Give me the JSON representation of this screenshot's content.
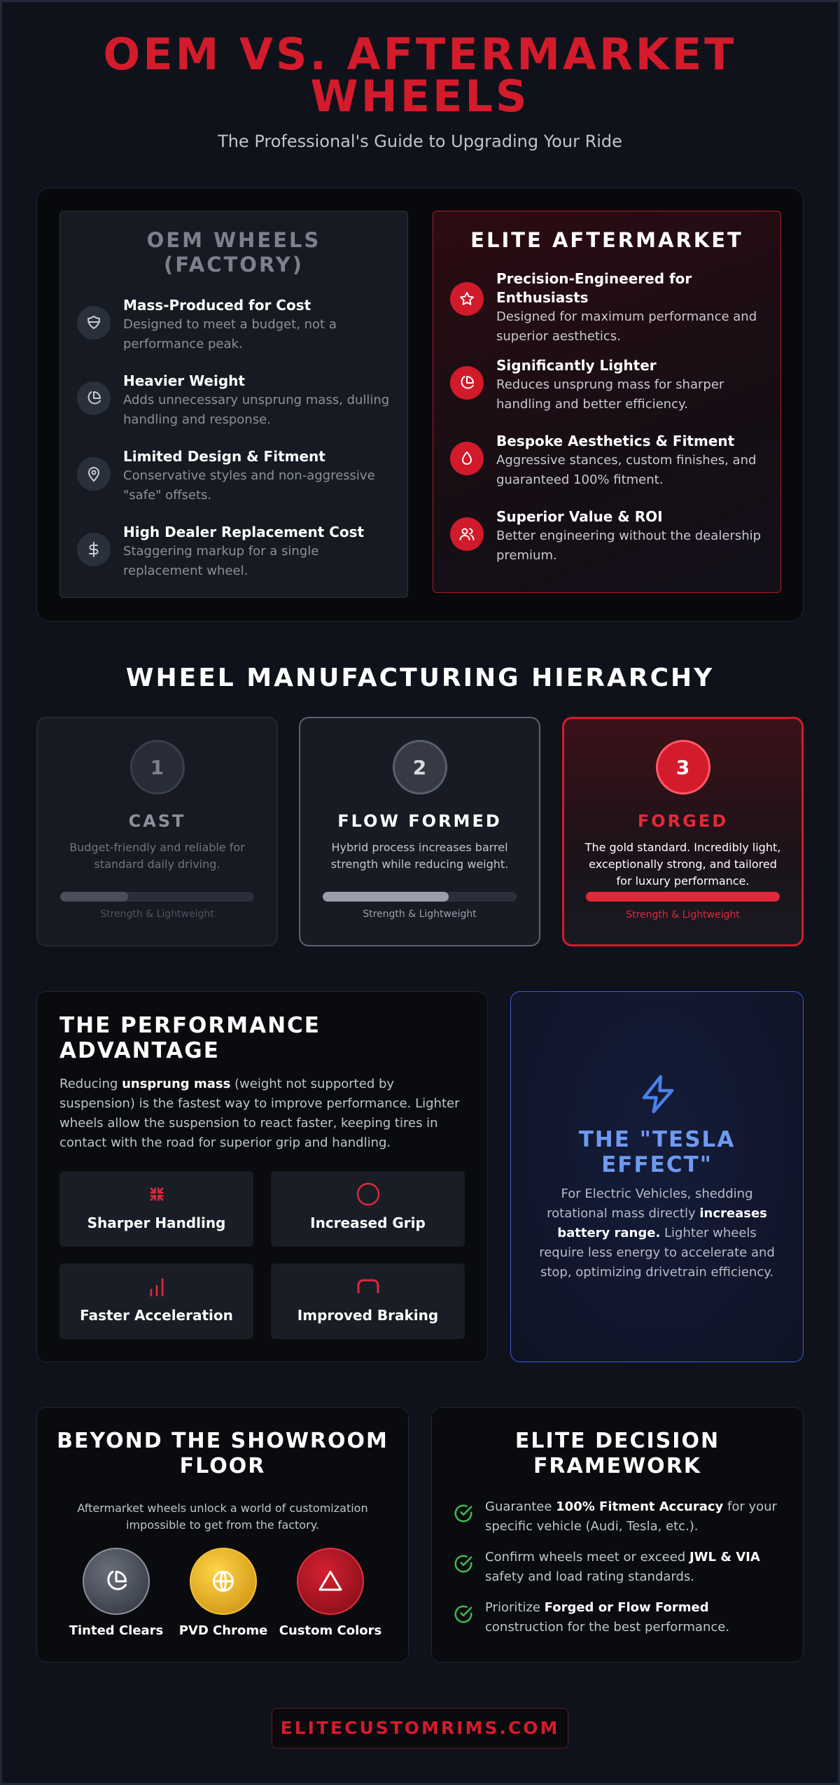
{
  "header": {
    "title_line1": "OEM VS. AFTERMARKET",
    "title_line2": "WHEELS",
    "subtitle": "The Professional's Guide to Upgrading Your Ride"
  },
  "comparison": {
    "oem": {
      "heading": "OEM WHEELS (FACTORY)",
      "features": [
        {
          "icon": "shield-icon",
          "title": "Mass-Produced for Cost",
          "desc": "Designed to meet a budget, not a performance peak."
        },
        {
          "icon": "pie-chart-icon",
          "title": "Heavier Weight",
          "desc": "Adds unnecessary unsprung mass, dulling handling and response."
        },
        {
          "icon": "map-pin-icon",
          "title": "Limited Design & Fitment",
          "desc": "Conservative styles and non-aggressive \"safe\" offsets."
        },
        {
          "icon": "dollar-icon",
          "title": "High Dealer Replacement Cost",
          "desc": "Staggering markup for a single replacement wheel."
        }
      ]
    },
    "elite": {
      "heading": "ELITE AFTERMARKET",
      "features": [
        {
          "icon": "star-icon",
          "title": "Precision-Engineered for Enthusiasts",
          "desc": "Designed for maximum performance and superior aesthetics."
        },
        {
          "icon": "pie-chart-icon",
          "title": "Significantly Lighter",
          "desc": "Reduces unsprung mass for sharper handling and better efficiency."
        },
        {
          "icon": "droplet-icon",
          "title": "Bespoke Aesthetics & Fitment",
          "desc": "Aggressive stances, custom finishes, and guaranteed 100% fitment."
        },
        {
          "icon": "users-icon",
          "title": "Superior Value & ROI",
          "desc": "Better engineering without the dealership premium."
        }
      ]
    }
  },
  "hierarchy": {
    "heading": "WHEEL MANUFACTURING HIERARCHY",
    "tiers": [
      {
        "num": "1",
        "name": "CAST",
        "desc": "Budget-friendly and reliable for standard daily driving.",
        "strength": 0.35,
        "bar_label": "Strength & Lightweight"
      },
      {
        "num": "2",
        "name": "FLOW FORMED",
        "desc": "Hybrid process increases barrel strength while reducing weight.",
        "strength": 0.65,
        "bar_label": "Strength & Lightweight"
      },
      {
        "num": "3",
        "name": "FORGED",
        "desc": "The gold standard. Incredibly light, exceptionally strong, and tailored for luxury performance.",
        "strength": 1.0,
        "bar_label": "Strength & Lightweight"
      }
    ]
  },
  "performance": {
    "title": "THE PERFORMANCE ADVANTAGE",
    "body_pre": "Reducing ",
    "body_bold": "unsprung mass",
    "body_post": " (weight not supported by suspension) is the fastest way to improve performance. Lighter wheels allow the suspension to react faster, keeping tires in contact with the road for superior grip and handling.",
    "benefits": [
      {
        "icon": "shrink-arrows-icon",
        "label": "Sharper Handling"
      },
      {
        "icon": "circle-icon",
        "label": "Increased Grip"
      },
      {
        "icon": "bar-chart-icon",
        "label": "Faster Acceleration"
      },
      {
        "icon": "brake-arc-icon",
        "label": "Improved Braking"
      }
    ]
  },
  "tesla": {
    "icon": "lightning-icon",
    "title": "THE \"TESLA EFFECT\"",
    "body_pre": "For Electric Vehicles, shedding rotational mass directly ",
    "body_bold": "increases battery range.",
    "body_post": " Lighter wheels require less energy to accelerate and stop, optimizing drivetrain efficiency."
  },
  "showroom": {
    "title": "BEYOND THE SHOWROOM FLOOR",
    "desc": "Aftermarket wheels unlock a world of customization impossible to get from the factory.",
    "finishes": [
      {
        "icon": "pie-chart-icon",
        "label": "Tinted Clears"
      },
      {
        "icon": "globe-icon",
        "label": "PVD Chrome"
      },
      {
        "icon": "triangle-icon",
        "label": "Custom Colors"
      }
    ]
  },
  "framework": {
    "title": "ELITE DECISION FRAMEWORK",
    "items": [
      {
        "pre": "Guarantee ",
        "bold": "100% Fitment Accuracy",
        "post": " for your specific vehicle (Audi, Tesla, etc.)."
      },
      {
        "pre": "Confirm wheels meet or exceed ",
        "bold": "JWL & VIA",
        "post": " safety and load rating standards."
      },
      {
        "pre": "Prioritize ",
        "bold": "Forged or Flow Formed",
        "post": " construction for the best performance."
      }
    ]
  },
  "footer": {
    "site": "ELITECUSTOMRIMS.COM"
  },
  "colors": {
    "accent": "#d41b2c",
    "background": "#0f121a",
    "tesla_blue": "#6e9bf0",
    "check_green": "#3fb950"
  }
}
